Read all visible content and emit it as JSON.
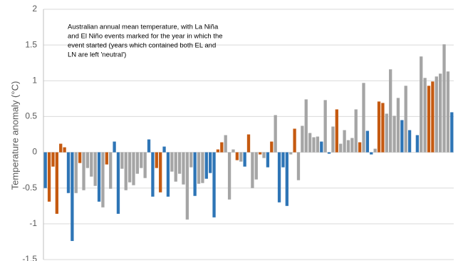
{
  "chart_data": {
    "type": "bar",
    "y_label": "Temperature anomaly (°C)",
    "annotation": [
      "Australian annual mean temperature, with La Niña",
      "and El Niño events marked for the year in which the",
      "event started (years which contained both EL and",
      "LN are left 'neutral')"
    ],
    "ylim": [
      -1.5,
      2
    ],
    "yticks": [
      -1.5,
      -1,
      -0.5,
      0,
      0.5,
      1,
      1.5,
      2
    ],
    "grid": true,
    "values": [
      -0.5,
      -0.69,
      -0.2,
      -0.86,
      0.12,
      0.07,
      -0.57,
      -1.24,
      -0.57,
      -0.15,
      -0.53,
      -0.22,
      -0.34,
      -0.47,
      -0.69,
      -0.77,
      -0.17,
      -0.51,
      0.15,
      -0.86,
      -0.23,
      -0.53,
      -0.42,
      -0.46,
      -0.3,
      -0.22,
      -0.36,
      0.18,
      -0.62,
      -0.22,
      -0.56,
      0.08,
      -0.62,
      -0.27,
      -0.41,
      -0.3,
      -0.45,
      -0.94,
      -0.21,
      -0.61,
      -0.44,
      -0.43,
      -0.37,
      -0.29,
      -0.91,
      0.04,
      0.14,
      0.24,
      -0.66,
      0.04,
      -0.11,
      -0.13,
      -0.2,
      0.25,
      -0.5,
      -0.38,
      -0.03,
      -0.08,
      -0.21,
      0.15,
      0.52,
      -0.7,
      -0.21,
      -0.75,
      -0.03,
      0.33,
      -0.39,
      0.37,
      0.74,
      0.27,
      0.21,
      0.22,
      0.15,
      0.73,
      -0.02,
      0.36,
      0.6,
      0.12,
      0.31,
      0.17,
      0.2,
      0.6,
      0.14,
      0.97,
      0.3,
      -0.03,
      0.05,
      0.71,
      0.69,
      0.54,
      1.16,
      0.51,
      0.76,
      0.45,
      0.93,
      0.31,
      null,
      0.24,
      1.34,
      1.04,
      0.93,
      0.99,
      1.06,
      1.1,
      1.51,
      1.13,
      0.56
    ],
    "colors": [
      "#2e75b6",
      "#c55a11",
      "#c55a11",
      "#c55a11",
      "#c55a11",
      "#c55a11",
      "#2e75b6",
      "#2e75b6",
      "#a5a5a5",
      "#c55a11",
      "#a5a5a5",
      "#a5a5a5",
      "#a5a5a5",
      "#a5a5a5",
      "#2e75b6",
      "#a5a5a5",
      "#c55a11",
      "#a5a5a5",
      "#2e75b6",
      "#2e75b6",
      "#a5a5a5",
      "#a5a5a5",
      "#a5a5a5",
      "#a5a5a5",
      "#a5a5a5",
      "#a5a5a5",
      "#a5a5a5",
      "#2e75b6",
      "#2e75b6",
      "#c55a11",
      "#c55a11",
      "#2e75b6",
      "#2e75b6",
      "#a5a5a5",
      "#a5a5a5",
      "#a5a5a5",
      "#a5a5a5",
      "#a5a5a5",
      "#a5a5a5",
      "#2e75b6",
      "#a5a5a5",
      "#a5a5a5",
      "#2e75b6",
      "#2e75b6",
      "#2e75b6",
      "#c55a11",
      "#c55a11",
      "#a5a5a5",
      "#a5a5a5",
      "#a5a5a5",
      "#c55a11",
      "#a5a5a5",
      "#2e75b6",
      "#c55a11",
      "#a5a5a5",
      "#a5a5a5",
      "#c55a11",
      "#a5a5a5",
      "#2e75b6",
      "#c55a11",
      "#a5a5a5",
      "#2e75b6",
      "#2e75b6",
      "#2e75b6",
      "#a5a5a5",
      "#c55a11",
      "#a5a5a5",
      "#a5a5a5",
      "#a5a5a5",
      "#a5a5a5",
      "#a5a5a5",
      "#a5a5a5",
      "#2e75b6",
      "#a5a5a5",
      "#2e75b6",
      "#a5a5a5",
      "#c55a11",
      "#a5a5a5",
      "#a5a5a5",
      "#a5a5a5",
      "#a5a5a5",
      "#a5a5a5",
      "#c55a11",
      "#a5a5a5",
      "#2e75b6",
      "#2e75b6",
      "#a5a5a5",
      "#c55a11",
      "#c55a11",
      "#a5a5a5",
      "#a5a5a5",
      "#a5a5a5",
      "#a5a5a5",
      "#2e75b6",
      "#a5a5a5",
      "#2e75b6",
      "#a5a5a5",
      "#2e75b6",
      "#a5a5a5",
      "#a5a5a5",
      "#c55a11",
      "#c55a11",
      "#a5a5a5",
      "#a5a5a5",
      "#a5a5a5",
      "#a5a5a5",
      "#2e75b6"
    ]
  }
}
